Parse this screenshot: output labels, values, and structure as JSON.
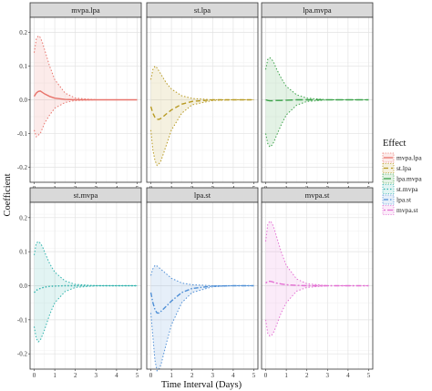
{
  "chart_data": {
    "type": "line",
    "ylabel": "Coefficient",
    "xlabel": "Time Interval (Days)",
    "x_ticks": [
      0,
      1,
      2,
      3,
      4,
      5
    ],
    "y_ticks": [
      -0.2,
      -0.1,
      0.0,
      0.1,
      0.2
    ],
    "y_tick_labels": [
      "-0.2",
      "-0.1",
      "0.0",
      "0.1",
      "0.2"
    ],
    "xlim": [
      -0.2,
      5.2
    ],
    "ylim": [
      -0.245,
      0.245
    ],
    "grid": true,
    "legend": {
      "title": "Effect",
      "placement": "right"
    },
    "panels": [
      {
        "label": "mvpa.lpa",
        "color": "#e8736b",
        "linestyle": "solid",
        "x": [
          0,
          0.1,
          0.2,
          0.3,
          0.4,
          0.5,
          0.75,
          1,
          1.5,
          2,
          3,
          4,
          5
        ],
        "estimate": [
          0.01,
          0.02,
          0.025,
          0.026,
          0.022,
          0.018,
          0.01,
          0.005,
          0.001,
          0,
          0,
          0,
          0
        ],
        "upper": [
          0.14,
          0.18,
          0.19,
          0.185,
          0.17,
          0.15,
          0.1,
          0.06,
          0.02,
          0.005,
          0,
          0,
          0
        ],
        "lower": [
          -0.09,
          -0.11,
          -0.105,
          -0.1,
          -0.085,
          -0.07,
          -0.045,
          -0.025,
          -0.008,
          -0.002,
          0,
          0,
          0
        ]
      },
      {
        "label": "st.lpa",
        "color": "#b89a22",
        "linestyle": "dashed",
        "x": [
          0,
          0.1,
          0.2,
          0.3,
          0.4,
          0.5,
          0.75,
          1,
          1.5,
          2,
          3,
          4,
          5
        ],
        "estimate": [
          -0.02,
          -0.04,
          -0.052,
          -0.058,
          -0.058,
          -0.055,
          -0.042,
          -0.03,
          -0.013,
          -0.005,
          0,
          0,
          0
        ],
        "upper": [
          0.06,
          0.09,
          0.1,
          0.095,
          0.085,
          0.075,
          0.05,
          0.032,
          0.012,
          0.004,
          0,
          0,
          0
        ],
        "lower": [
          -0.09,
          -0.15,
          -0.18,
          -0.195,
          -0.19,
          -0.18,
          -0.135,
          -0.09,
          -0.04,
          -0.015,
          -0.002,
          0,
          0
        ]
      },
      {
        "label": "lpa.mvpa",
        "color": "#3ca34a",
        "linestyle": "longdash",
        "x": [
          0,
          0.1,
          0.2,
          0.3,
          0.4,
          0.5,
          0.75,
          1,
          1.5,
          2,
          3,
          4,
          5
        ],
        "estimate": [
          0,
          -0.002,
          -0.003,
          -0.003,
          -0.003,
          -0.002,
          -0.002,
          -0.001,
          0,
          0,
          0,
          0,
          0
        ],
        "upper": [
          0.09,
          0.12,
          0.125,
          0.12,
          0.11,
          0.095,
          0.065,
          0.04,
          0.015,
          0.005,
          0,
          0,
          0
        ],
        "lower": [
          -0.1,
          -0.13,
          -0.14,
          -0.135,
          -0.125,
          -0.11,
          -0.075,
          -0.045,
          -0.016,
          -0.005,
          0,
          0,
          0
        ]
      },
      {
        "label": "st.mvpa",
        "color": "#2fb3ad",
        "linestyle": "dotted",
        "x": [
          0,
          0.1,
          0.2,
          0.3,
          0.4,
          0.5,
          0.75,
          1,
          1.5,
          2,
          3,
          4,
          5
        ],
        "estimate": [
          -0.02,
          -0.014,
          -0.01,
          -0.008,
          -0.006,
          -0.004,
          -0.002,
          -0.001,
          0,
          0,
          0,
          0,
          0
        ],
        "upper": [
          0.09,
          0.125,
          0.13,
          0.125,
          0.115,
          0.1,
          0.065,
          0.04,
          0.014,
          0.004,
          0,
          0,
          0
        ],
        "lower": [
          -0.12,
          -0.155,
          -0.165,
          -0.16,
          -0.145,
          -0.13,
          -0.085,
          -0.05,
          -0.017,
          -0.005,
          0,
          0,
          0
        ]
      },
      {
        "label": "lpa.st",
        "color": "#4f8fd6",
        "linestyle": "dashdot",
        "x": [
          0,
          0.1,
          0.2,
          0.3,
          0.4,
          0.5,
          0.75,
          1,
          1.5,
          2,
          3,
          4,
          5
        ],
        "estimate": [
          -0.02,
          -0.05,
          -0.07,
          -0.08,
          -0.08,
          -0.075,
          -0.06,
          -0.045,
          -0.02,
          -0.008,
          -0.001,
          0,
          0
        ],
        "upper": [
          0.03,
          0.05,
          0.06,
          0.058,
          0.053,
          0.048,
          0.035,
          0.022,
          0.008,
          0.003,
          0,
          0,
          0
        ],
        "lower": [
          -0.08,
          -0.15,
          -0.22,
          -0.25,
          -0.245,
          -0.23,
          -0.17,
          -0.115,
          -0.05,
          -0.02,
          -0.003,
          0,
          0
        ]
      },
      {
        "label": "mvpa.st",
        "color": "#e36fd3",
        "linestyle": "twodash",
        "x": [
          0,
          0.1,
          0.2,
          0.3,
          0.4,
          0.5,
          0.75,
          1,
          1.5,
          2,
          3,
          4,
          5
        ],
        "estimate": [
          0.008,
          0.012,
          0.013,
          0.012,
          0.01,
          0.008,
          0.005,
          0.003,
          0.001,
          0,
          0,
          0,
          0
        ],
        "upper": [
          0.13,
          0.18,
          0.19,
          0.185,
          0.17,
          0.15,
          0.1,
          0.06,
          0.02,
          0.006,
          0,
          0,
          0
        ],
        "lower": [
          -0.1,
          -0.14,
          -0.148,
          -0.145,
          -0.135,
          -0.12,
          -0.08,
          -0.05,
          -0.016,
          -0.005,
          0,
          0,
          0
        ]
      }
    ]
  }
}
